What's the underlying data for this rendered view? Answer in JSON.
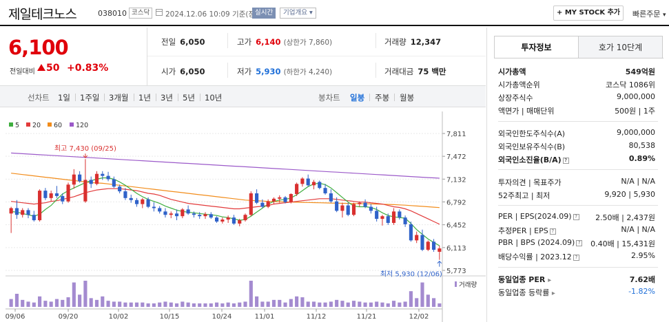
{
  "header": {
    "name": "제일테크노스",
    "code": "038010",
    "market_tag": "코스닥",
    "datetime": "2024.12.06 10:09 기준(장중)",
    "realtime": "실시간",
    "corp_info": "기업개요",
    "mystock": "MY STOCK 추가",
    "fast_order": "빠른주문"
  },
  "price": {
    "current": "6,100",
    "change_label": "전일대비",
    "change": "50",
    "change_pct": "+0.83%"
  },
  "stats": {
    "prev_label": "전일",
    "prev": "6,050",
    "open_label": "시가",
    "open": "6,050",
    "high_label": "고가",
    "high": "6,140",
    "upper_limit": "(상한가 7,860)",
    "low_label": "저가",
    "low": "5,930",
    "lower_limit": "(하한가 4,240)",
    "volume_label": "거래량",
    "volume": "12,347",
    "amount_label": "거래대금",
    "amount": "75 백만"
  },
  "periods": {
    "line_label": "선차트",
    "items": [
      "1일",
      "1주일",
      "3개월",
      "1년",
      "3년",
      "5년",
      "10년"
    ],
    "candle_label": "봉차트",
    "candles": [
      "일봉",
      "주봉",
      "월봉"
    ],
    "active_candle": "일봉"
  },
  "chart_data": {
    "type": "candlestick",
    "legend": [
      "5",
      "20",
      "60",
      "120"
    ],
    "colors": {
      "ma5": "#3fae3f",
      "ma20": "#e23a3a",
      "ma60": "#f28c1a",
      "ma120": "#9b59c9",
      "up": "#d9302f",
      "down": "#2f62c9"
    },
    "y_ticks": [
      "7,811",
      "7,472",
      "7,132",
      "6,792",
      "6,452",
      "6,113",
      "5,773"
    ],
    "y_range": [
      5773,
      7811
    ],
    "x_labels": [
      "09/06",
      "09/20",
      "10/02",
      "10/15",
      "10/24",
      "11/01",
      "11/12",
      "11/21",
      "12/02"
    ],
    "high_note": "최고 7,430 (09/25)",
    "low_note": "최저 5,930 (12/06)",
    "volume_label": "거래량",
    "candles": [
      [
        6620,
        6720,
        6330,
        6700
      ],
      [
        6700,
        6820,
        6540,
        6600
      ],
      [
        6600,
        6700,
        6560,
        6670
      ],
      [
        6670,
        6700,
        6550,
        6600
      ],
      [
        6600,
        6660,
        6500,
        6520
      ],
      [
        6520,
        6980,
        6500,
        6960
      ],
      [
        6960,
        7000,
        6820,
        6850
      ],
      [
        6850,
        6960,
        6800,
        6920
      ],
      [
        6920,
        7030,
        6850,
        6880
      ],
      [
        6880,
        6920,
        6760,
        6800
      ],
      [
        6800,
        7080,
        6780,
        7050
      ],
      [
        7050,
        7280,
        6990,
        7200
      ],
      [
        7200,
        7250,
        7080,
        7100
      ],
      [
        6800,
        7430,
        6780,
        7120
      ],
      [
        7120,
        7170,
        7000,
        7060
      ],
      [
        7060,
        7250,
        7040,
        7210
      ],
      [
        7210,
        7250,
        7120,
        7180
      ],
      [
        7180,
        7240,
        7100,
        7130
      ],
      [
        7130,
        7170,
        7000,
        7020
      ],
      [
        7020,
        7050,
        6920,
        6950
      ],
      [
        6950,
        7000,
        6820,
        6850
      ],
      [
        6850,
        6900,
        6780,
        6820
      ],
      [
        6820,
        6850,
        6720,
        6760
      ],
      [
        6760,
        6850,
        6700,
        6830
      ],
      [
        6830,
        6860,
        6700,
        6720
      ],
      [
        6720,
        6790,
        6650,
        6700
      ],
      [
        6700,
        6730,
        6620,
        6650
      ],
      [
        6650,
        6700,
        6560,
        6600
      ],
      [
        6600,
        6650,
        6550,
        6620
      ],
      [
        6620,
        6680,
        6520,
        6580
      ],
      [
        6580,
        6700,
        6550,
        6680
      ],
      [
        6680,
        6740,
        6600,
        6620
      ],
      [
        6620,
        6650,
        6560,
        6600
      ],
      [
        6600,
        6640,
        6540,
        6580
      ],
      [
        6580,
        6640,
        6540,
        6610
      ],
      [
        6610,
        6640,
        6540,
        6560
      ],
      [
        6560,
        6580,
        6480,
        6500
      ],
      [
        6500,
        6560,
        6470,
        6530
      ],
      [
        6530,
        6590,
        6480,
        6560
      ],
      [
        6560,
        6600,
        6450,
        6470
      ],
      [
        6470,
        6540,
        6430,
        6520
      ],
      [
        6520,
        6620,
        6500,
        6600
      ],
      [
        6600,
        6950,
        6580,
        6920
      ],
      [
        6920,
        6980,
        6760,
        6780
      ],
      [
        6780,
        6830,
        6700,
        6720
      ],
      [
        6720,
        6830,
        6700,
        6800
      ],
      [
        6800,
        6860,
        6760,
        6840
      ],
      [
        6840,
        6890,
        6780,
        6860
      ],
      [
        6860,
        6880,
        6770,
        6790
      ],
      [
        6790,
        6920,
        6770,
        6910
      ],
      [
        6910,
        7080,
        6880,
        7060
      ],
      [
        7060,
        7160,
        7020,
        7140
      ],
      [
        7140,
        7200,
        7020,
        7040
      ],
      [
        7040,
        7120,
        6980,
        7090
      ],
      [
        7090,
        7110,
        6980,
        7000
      ],
      [
        7000,
        7060,
        6900,
        6920
      ],
      [
        6920,
        6980,
        6780,
        6800
      ],
      [
        6800,
        6860,
        6640,
        6660
      ],
      [
        6660,
        6780,
        6560,
        6740
      ],
      [
        6740,
        6780,
        6580,
        6600
      ],
      [
        6600,
        6780,
        6580,
        6760
      ],
      [
        6760,
        6800,
        6720,
        6780
      ],
      [
        6780,
        6830,
        6700,
        6720
      ],
      [
        6720,
        6760,
        6620,
        6660
      ],
      [
        6660,
        6720,
        6500,
        6540
      ],
      [
        6540,
        6600,
        6440,
        6580
      ],
      [
        6580,
        6620,
        6450,
        6480
      ],
      [
        6480,
        6700,
        6450,
        6650
      ],
      [
        6650,
        6680,
        6530,
        6560
      ],
      [
        6560,
        6590,
        6420,
        6460
      ],
      [
        6460,
        6500,
        6200,
        6220
      ],
      [
        6220,
        6350,
        6180,
        6300
      ],
      [
        6300,
        6380,
        6060,
        6080
      ],
      [
        6080,
        6220,
        6060,
        6200
      ],
      [
        6200,
        6240,
        6050,
        6080
      ],
      [
        6050,
        6140,
        5930,
        6100
      ]
    ],
    "volumes": [
      9,
      15,
      8,
      6,
      5,
      12,
      7,
      6,
      9,
      8,
      11,
      28,
      14,
      30,
      10,
      8,
      12,
      7,
      6,
      6,
      5,
      5,
      5,
      5,
      4,
      4,
      5,
      6,
      5,
      4,
      6,
      5,
      4,
      4,
      4,
      4,
      5,
      4,
      5,
      4,
      5,
      6,
      30,
      12,
      6,
      6,
      8,
      8,
      5,
      9,
      12,
      11,
      6,
      6,
      5,
      5,
      6,
      8,
      7,
      5,
      7,
      6,
      5,
      5,
      6,
      5,
      4,
      7,
      5,
      6,
      18,
      10,
      28,
      14,
      10,
      4
    ],
    "ma5": [
      6650,
      6640,
      6620,
      6600,
      6580,
      6610,
      6680,
      6740,
      6830,
      6910,
      6960,
      7000,
      7040,
      7080,
      7110,
      7130,
      7150,
      7150,
      7130,
      7090,
      7040,
      6980,
      6920,
      6870,
      6830,
      6800,
      6770,
      6730,
      6700,
      6670,
      6650,
      6640,
      6630,
      6620,
      6610,
      6600,
      6590,
      6570,
      6560,
      6540,
      6520,
      6530,
      6580,
      6640,
      6700,
      6760,
      6800,
      6820,
      6830,
      6850,
      6900,
      6960,
      7020,
      7060,
      7070,
      7050,
      7000,
      6930,
      6860,
      6790,
      6730,
      6720,
      6720,
      6710,
      6680,
      6630,
      6590,
      6570,
      6560,
      6550,
      6470,
      6380,
      6310,
      6240,
      6190,
      6140
    ],
    "ma20": [
      6800,
      6790,
      6780,
      6770,
      6760,
      6770,
      6780,
      6800,
      6810,
      6830,
      6850,
      6870,
      6900,
      6930,
      6950,
      6970,
      6980,
      6990,
      6990,
      6990,
      6980,
      6970,
      6960,
      6940,
      6920,
      6910,
      6890,
      6860,
      6830,
      6810,
      6790,
      6770,
      6760,
      6750,
      6740,
      6730,
      6720,
      6710,
      6700,
      6690,
      6690,
      6700,
      6710,
      6720,
      6730,
      6740,
      6760,
      6770,
      6780,
      6790,
      6800,
      6810,
      6820,
      6830,
      6840,
      6840,
      6840,
      6830,
      6820,
      6810,
      6800,
      6790,
      6790,
      6780,
      6770,
      6760,
      6740,
      6720,
      6710,
      6690,
      6660,
      6620,
      6580,
      6540,
      6500,
      6460
    ],
    "ma60": [
      7220,
      7210,
      7200,
      7190,
      7180,
      7170,
      7160,
      7150,
      7140,
      7130,
      7120,
      7110,
      7100,
      7090,
      7080,
      7075,
      7070,
      7060,
      7050,
      7040,
      7030,
      7020,
      7010,
      7000,
      6990,
      6980,
      6970,
      6960,
      6950,
      6940,
      6930,
      6920,
      6910,
      6900,
      6890,
      6880,
      6870,
      6860,
      6850,
      6840,
      6830,
      6820,
      6815,
      6810,
      6805,
      6800,
      6798,
      6795,
      6792,
      6790,
      6788,
      6786,
      6784,
      6782,
      6780,
      6778,
      6776,
      6774,
      6772,
      6770,
      6768,
      6766,
      6764,
      6762,
      6760,
      6758,
      6755,
      6752,
      6748,
      6744,
      6738,
      6732,
      6726,
      6720,
      6714,
      6708
    ],
    "ma120": [
      7520,
      7515,
      7510,
      7505,
      7500,
      7495,
      7490,
      7485,
      7480,
      7475,
      7470,
      7465,
      7460,
      7455,
      7450,
      7445,
      7440,
      7435,
      7430,
      7425,
      7420,
      7415,
      7410,
      7405,
      7400,
      7395,
      7390,
      7385,
      7380,
      7375,
      7370,
      7365,
      7360,
      7355,
      7350,
      7345,
      7340,
      7335,
      7330,
      7325,
      7320,
      7315,
      7310,
      7305,
      7300,
      7295,
      7290,
      7285,
      7280,
      7275,
      7270,
      7265,
      7260,
      7255,
      7250,
      7245,
      7240,
      7235,
      7230,
      7225,
      7220,
      7215,
      7210,
      7205,
      7200,
      7195,
      7190,
      7185,
      7180,
      7175,
      7170,
      7165,
      7160,
      7155,
      7150,
      7145
    ]
  },
  "panel": {
    "tab_active": "투자정보",
    "tab_other": "호가 10단계",
    "rows": [
      {
        "k": "시가총액",
        "v": "549억원",
        "bold": true
      },
      {
        "k": "시가총액순위",
        "v": "코스닥 1086위"
      },
      {
        "k": "상장주식수",
        "v": "9,000,000"
      },
      {
        "k": "액면가 | 매매단위",
        "v": "500원 | 1주"
      },
      {
        "k": "외국인한도주식수(A)",
        "v": "9,000,000"
      },
      {
        "k": "외국인보유주식수(B)",
        "v": "80,538"
      },
      {
        "k": "외국인소진율(B/A)",
        "v": "0.89%",
        "bold": true
      },
      {
        "k": "투자의견 | 목표주가",
        "v": "N/A | N/A"
      },
      {
        "k": "52주최고 | 최저",
        "v": "9,920 | 5,930"
      },
      {
        "k": "PER | EPS(2024.09)",
        "v": "2.50배 | 2,437원"
      },
      {
        "k": "추정PER | EPS",
        "v": "N/A | N/A"
      },
      {
        "k": "PBR | BPS (2024.09)",
        "v": "0.40배 | 15,431원"
      },
      {
        "k": "배당수익률 | 2023.12",
        "v": "2.95%"
      },
      {
        "k": "동일업종 PER",
        "v": "7.62배",
        "bold": true
      },
      {
        "k": "동일업종 등락률",
        "v": "-1.82%",
        "blue": true
      }
    ]
  }
}
